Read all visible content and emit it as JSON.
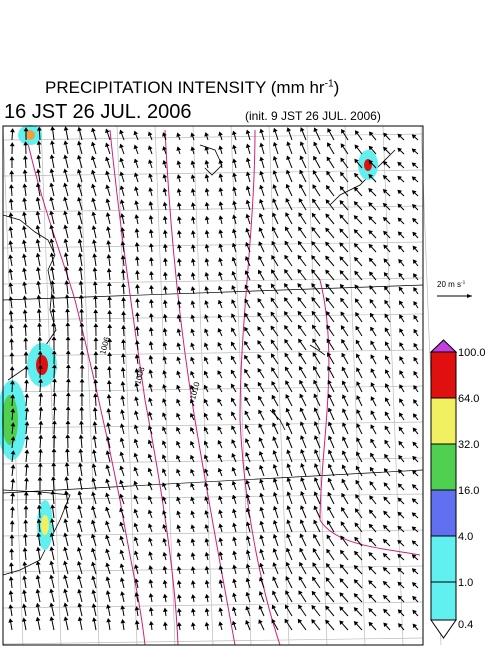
{
  "header": {
    "title": "PRECIPITATION INTENSITY (mm hr",
    "title_sup": "-1",
    "title_end": ")",
    "time": "16 JST 26 JUL. 2006",
    "init": "(init. 9 JST 26 JUL. 2006)"
  },
  "scale": {
    "label": "20 m s",
    "label_sup": "-1"
  },
  "contours": [
    "1006",
    "1008",
    "1010"
  ],
  "colorbar": {
    "top_color": "#c040e0",
    "bottom_color": "#ffffff",
    "levels": [
      {
        "label": "100.0",
        "color": "#e01010"
      },
      {
        "label": "64.0",
        "color": "#f0a040"
      },
      {
        "label": "32.0",
        "color": "#f0f060"
      },
      {
        "label": "16.0",
        "color": "#50d050"
      },
      {
        "label": "4.0",
        "color": "#6070f0"
      },
      {
        "label": "1.0",
        "color": "#60f0f0"
      },
      {
        "label": "0.4",
        "color": null
      }
    ]
  }
}
